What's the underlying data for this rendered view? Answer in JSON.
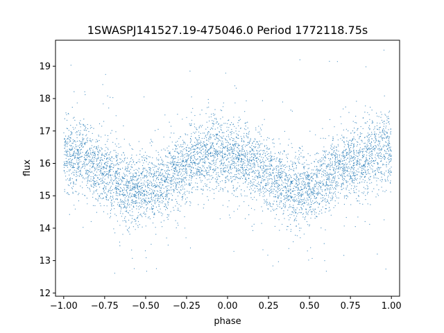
{
  "chart_data": {
    "type": "scatter",
    "title": "1SWASPJ141527.19-475046.0 Period 1772118.75s",
    "xlabel": "phase",
    "ylabel": "flux",
    "xlim": [
      -1.05,
      1.05
    ],
    "ylim": [
      11.9,
      19.8
    ],
    "xticks": [
      -1.0,
      -0.75,
      -0.5,
      -0.25,
      0.0,
      0.25,
      0.5,
      0.75,
      1.0
    ],
    "xtick_labels": [
      "−1.00",
      "−0.75",
      "−0.50",
      "−0.25",
      "0.00",
      "0.25",
      "0.50",
      "0.75",
      "1.00"
    ],
    "yticks": [
      12,
      13,
      14,
      15,
      16,
      17,
      18,
      19
    ],
    "ytick_labels": [
      "12",
      "13",
      "14",
      "15",
      "16",
      "17",
      "18",
      "19"
    ],
    "grid": false,
    "marker_color": "#1f77b4",
    "profile": {
      "phase": [
        -1.0,
        -0.9,
        -0.8,
        -0.7,
        -0.6,
        -0.5,
        -0.4,
        -0.3,
        -0.2,
        -0.1,
        0.0,
        0.1,
        0.2,
        0.3,
        0.4,
        0.5,
        0.6,
        0.7,
        0.8,
        0.9,
        1.0
      ],
      "mean_flux": [
        16.3,
        16.2,
        15.9,
        15.5,
        15.2,
        15.2,
        15.4,
        15.8,
        16.1,
        16.4,
        16.3,
        16.1,
        15.8,
        15.5,
        15.2,
        15.2,
        15.5,
        15.9,
        16.1,
        16.3,
        16.4
      ]
    },
    "flux_scatter": 0.55
  }
}
